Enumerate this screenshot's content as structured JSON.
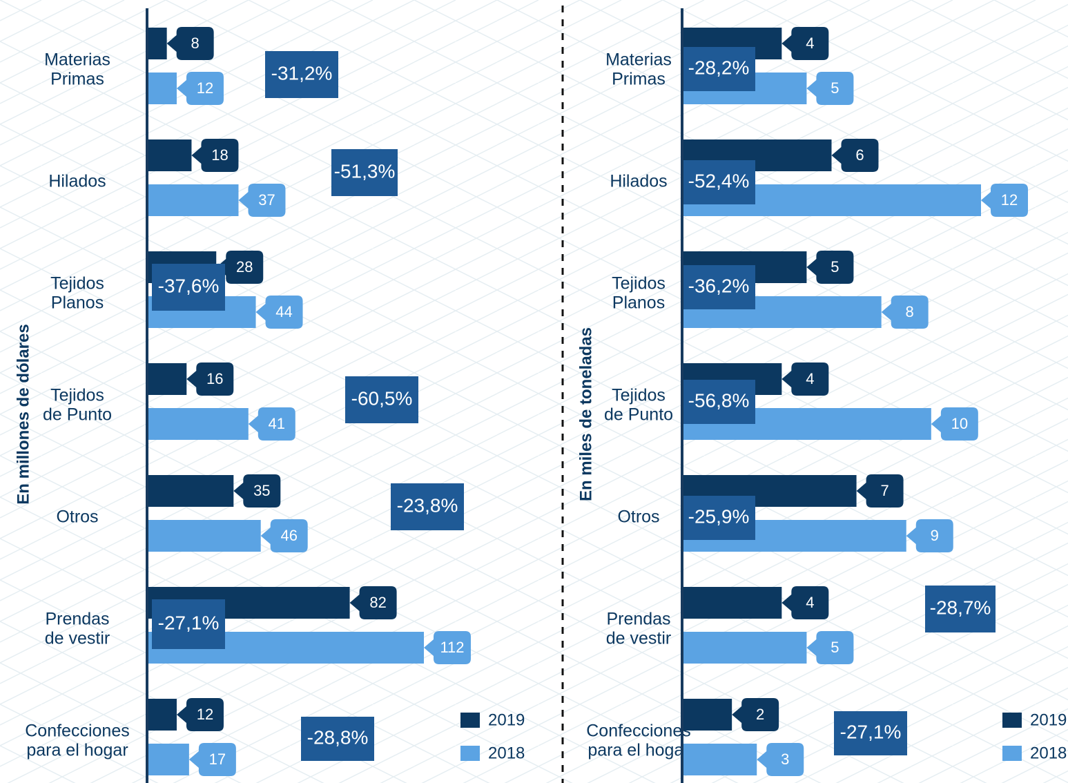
{
  "chart_data": [
    {
      "type": "bar",
      "orientation": "horizontal",
      "ylabel": "En millones de dólares",
      "categories": [
        [
          "Materias",
          "Primas"
        ],
        [
          "Hilados"
        ],
        [
          "Tejidos",
          "Planos"
        ],
        [
          "Tejidos",
          "de Punto"
        ],
        [
          "Otros"
        ],
        [
          "Prendas",
          "de vestir"
        ],
        [
          "Confecciones",
          "para el hogar"
        ]
      ],
      "series": [
        {
          "name": "2019",
          "color": "#0c3860",
          "values": [
            8,
            18,
            28,
            16,
            35,
            82,
            12
          ]
        },
        {
          "name": "2018",
          "color": "#5ba3e3",
          "values": [
            12,
            37,
            44,
            41,
            46,
            112,
            17
          ]
        }
      ],
      "changes": [
        "-31,2%",
        "-51,3%",
        "-37,6%",
        "-60,5%",
        "-23,8%",
        "-27,1%",
        "-28,8%"
      ],
      "xlim": [
        0,
        112
      ]
    },
    {
      "type": "bar",
      "orientation": "horizontal",
      "ylabel": "En miles de toneladas",
      "categories": [
        [
          "Materias",
          "Primas"
        ],
        [
          "Hilados"
        ],
        [
          "Tejidos",
          "Planos"
        ],
        [
          "Tejidos",
          "de Punto"
        ],
        [
          "Otros"
        ],
        [
          "Prendas",
          "de vestir"
        ],
        [
          "Confecciones",
          "para el hogar"
        ]
      ],
      "series": [
        {
          "name": "2019",
          "color": "#0c3860",
          "values": [
            4,
            6,
            5,
            4,
            7,
            4,
            2
          ]
        },
        {
          "name": "2018",
          "color": "#5ba3e3",
          "values": [
            5,
            12,
            8,
            10,
            9,
            5,
            3
          ]
        }
      ],
      "changes": [
        "-28,2%",
        "-52,4%",
        "-36,2%",
        "-56,8%",
        "-25,9%",
        "-28,7%",
        "-27,1%"
      ],
      "xlim": [
        0,
        12
      ]
    }
  ]
}
